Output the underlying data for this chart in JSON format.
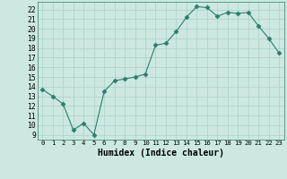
{
  "x": [
    0,
    1,
    2,
    3,
    4,
    5,
    6,
    7,
    8,
    9,
    10,
    11,
    12,
    13,
    14,
    15,
    16,
    17,
    18,
    19,
    20,
    21,
    22,
    23
  ],
  "y": [
    13.7,
    13.0,
    12.2,
    9.5,
    10.2,
    9.0,
    13.5,
    14.6,
    14.8,
    15.0,
    15.3,
    18.3,
    18.5,
    19.7,
    21.2,
    22.3,
    22.2,
    21.3,
    21.7,
    21.6,
    21.7,
    20.3,
    19.0,
    17.5
  ],
  "line_color": "#2e7d6e",
  "marker": "D",
  "marker_size": 2.5,
  "bg_color": "#cce8e0",
  "grid_color": "#b0d4cc",
  "xlabel": "Humidex (Indice chaleur)",
  "ylabel_ticks": [
    9,
    10,
    11,
    12,
    13,
    14,
    15,
    16,
    17,
    18,
    19,
    20,
    21,
    22
  ],
  "xlim": [
    -0.5,
    23.5
  ],
  "ylim": [
    8.5,
    22.8
  ]
}
